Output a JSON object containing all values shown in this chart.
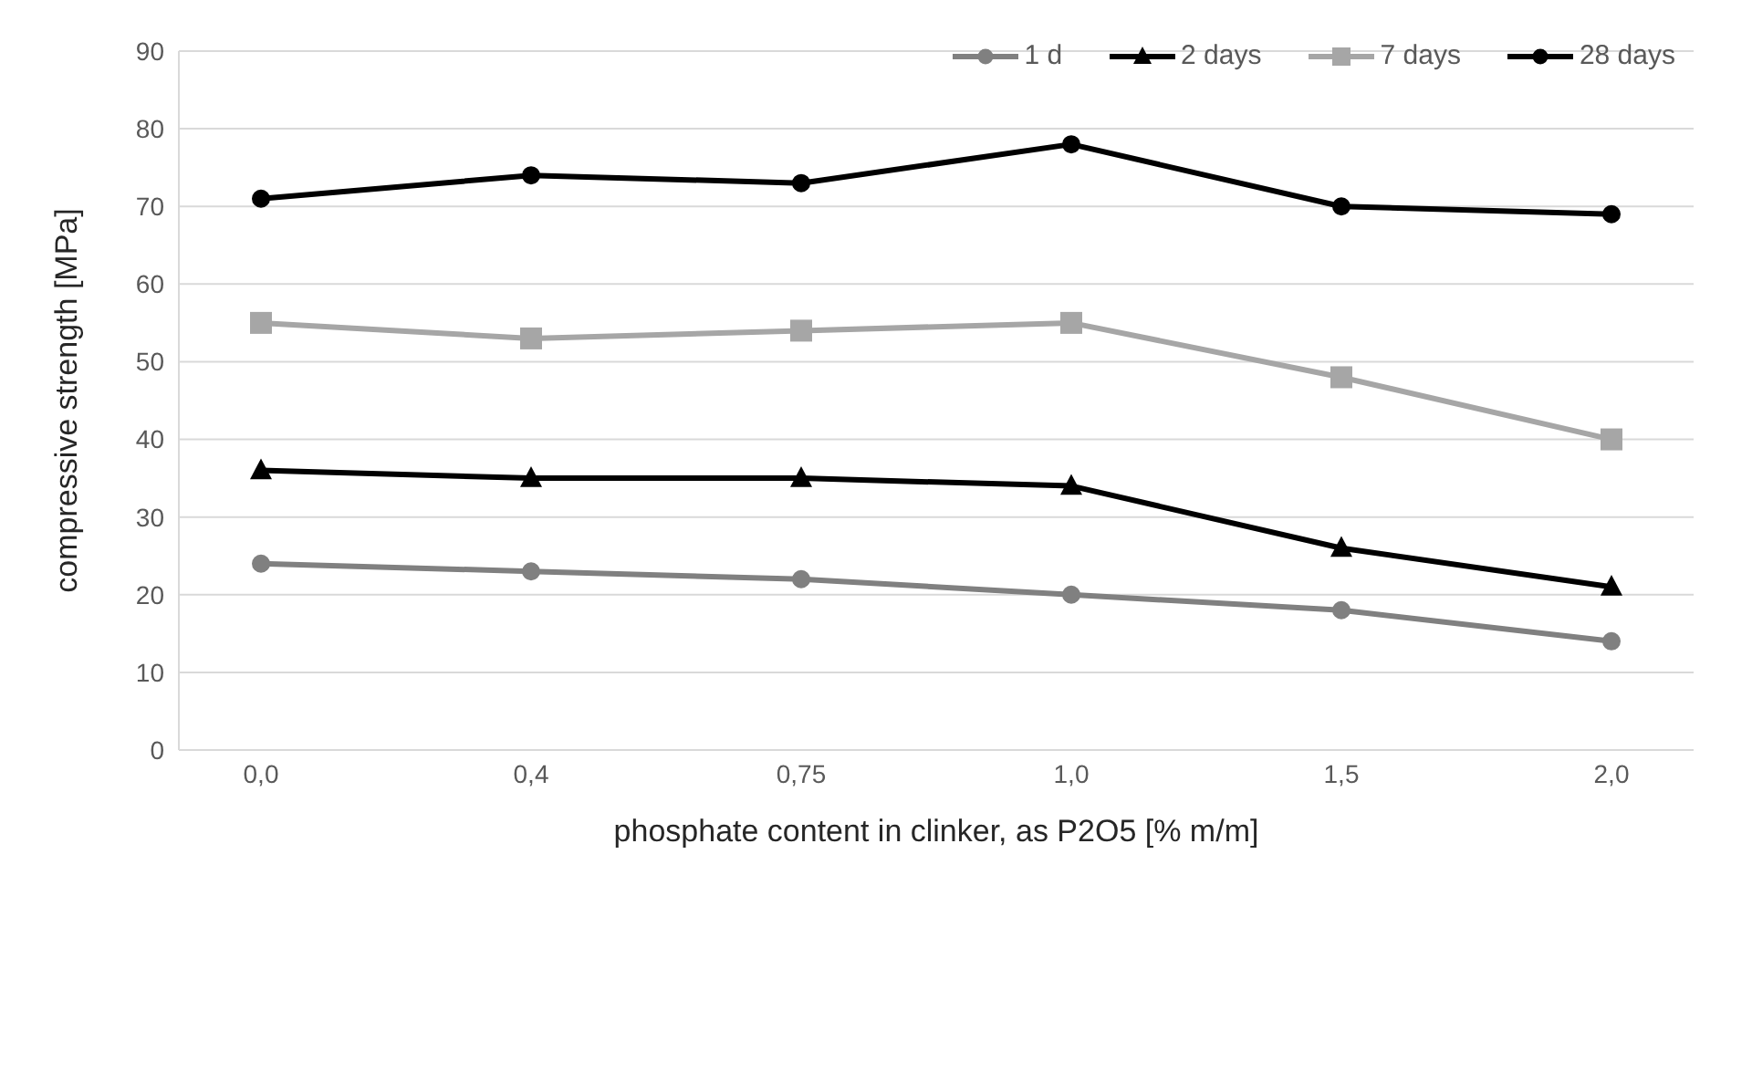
{
  "chart_data": {
    "type": "line",
    "xlabel": "phosphate content in clinker, as P2O5 [% m/m]",
    "ylabel": "compressive strength [MPa]",
    "categories": [
      "0,0",
      "0,4",
      "0,75",
      "1,0",
      "1,5",
      "2,0"
    ],
    "series": [
      {
        "name": "1 d",
        "color": "#808080",
        "marker": "circle",
        "values": [
          24,
          23,
          22,
          20,
          18,
          14
        ]
      },
      {
        "name": "2 days",
        "color": "#000000",
        "marker": "triangle",
        "values": [
          36,
          35,
          35,
          34,
          26,
          21
        ]
      },
      {
        "name": "7 days",
        "color": "#a6a6a6",
        "marker": "square",
        "values": [
          55,
          53,
          54,
          55,
          48,
          40
        ]
      },
      {
        "name": "28 days",
        "color": "#000000",
        "marker": "circle",
        "values": [
          71,
          74,
          73,
          78,
          70,
          69
        ]
      }
    ],
    "ylim": [
      0,
      90
    ],
    "yticks": [
      0,
      10,
      20,
      30,
      40,
      50,
      60,
      70,
      80,
      90
    ],
    "grid": "y",
    "legend": "top right",
    "line_style": "solid"
  }
}
